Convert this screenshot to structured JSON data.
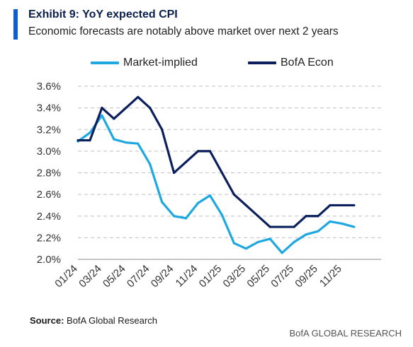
{
  "header": {
    "title": "Exhibit 9: YoY expected CPI",
    "subtitle": "Economic forecasts are notably above market over next 2 years"
  },
  "footer": {
    "source_label": "Source:",
    "source_text": "BofA Global Research",
    "brand": "BofA GLOBAL RESEARCH"
  },
  "colors": {
    "market_implied": "#1ea7e0",
    "bofa_econ": "#0a1f5c",
    "grid": "#cccccc",
    "accent": "#0b5fd6"
  },
  "chart_data": {
    "type": "line",
    "title": "",
    "xlabel": "",
    "ylabel": "",
    "ylim": [
      2.0,
      3.6
    ],
    "yticks": [
      "2.0%",
      "2.2%",
      "2.4%",
      "2.6%",
      "2.8%",
      "3.0%",
      "3.2%",
      "3.4%",
      "3.6%"
    ],
    "xticks": [
      "01/24",
      "03/24",
      "05/24",
      "07/24",
      "09/24",
      "11/24",
      "01/25",
      "03/25",
      "05/25",
      "07/25",
      "09/25",
      "11/25"
    ],
    "x": [
      "2024-01",
      "2024-02",
      "2024-03",
      "2024-04",
      "2024-05",
      "2024-06",
      "2024-07",
      "2024-08",
      "2024-09",
      "2024-10",
      "2024-11",
      "2024-12",
      "2025-01",
      "2025-02",
      "2025-03",
      "2025-04",
      "2025-05",
      "2025-06",
      "2025-07",
      "2025-08",
      "2025-09",
      "2025-10",
      "2025-11",
      "2025-12"
    ],
    "grid": "horizontal dashed",
    "legend": "top",
    "series": [
      {
        "name": "Market-implied",
        "values": [
          3.09,
          3.17,
          3.33,
          3.11,
          3.08,
          3.07,
          2.88,
          2.53,
          2.4,
          2.38,
          2.52,
          2.59,
          2.41,
          2.15,
          2.1,
          2.16,
          2.19,
          2.06,
          2.16,
          2.23,
          2.26,
          2.35,
          2.33,
          2.3
        ]
      },
      {
        "name": "BofA Econ",
        "values": [
          3.1,
          3.1,
          3.4,
          3.3,
          3.4,
          3.5,
          3.4,
          3.2,
          2.8,
          2.9,
          3.0,
          3.0,
          2.8,
          2.6,
          2.5,
          2.4,
          2.3,
          2.3,
          2.3,
          2.4,
          2.4,
          2.5,
          2.5,
          2.5
        ]
      }
    ]
  }
}
